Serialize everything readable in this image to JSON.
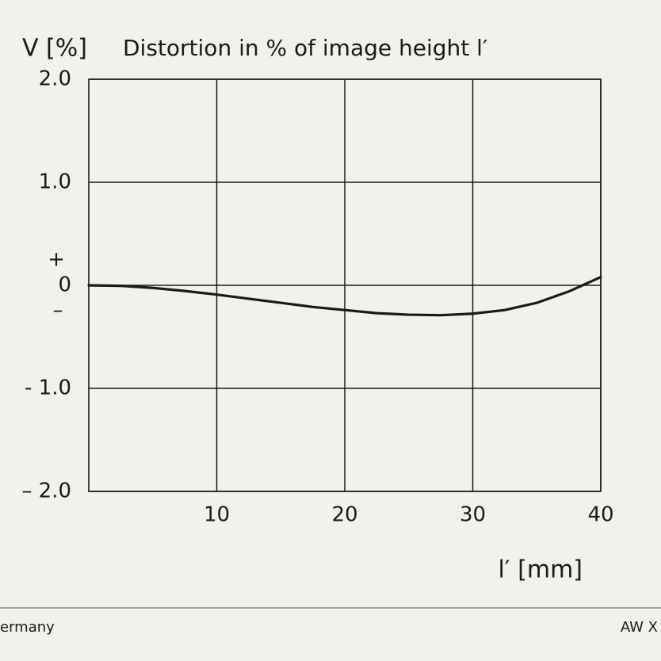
{
  "chart_data": {
    "type": "line",
    "y_label": "V [%]",
    "title": "Distortion in % of image height l′",
    "x_label": "l′ [mm]",
    "annotations": [
      "+",
      "–"
    ],
    "x": [
      0,
      2.5,
      5,
      7.5,
      10,
      12.5,
      15,
      17.5,
      20,
      22.5,
      25,
      27.5,
      30,
      32.5,
      35,
      37.5,
      40
    ],
    "values": [
      0,
      -0.005,
      -0.025,
      -0.055,
      -0.09,
      -0.13,
      -0.17,
      -0.21,
      -0.24,
      -0.27,
      -0.285,
      -0.29,
      -0.275,
      -0.24,
      -0.17,
      -0.06,
      0.08
    ],
    "color": "#1a1a1a",
    "xlim": [
      0,
      40
    ],
    "xticks": [
      10,
      20,
      30,
      40
    ],
    "ylim": [
      -2,
      2
    ],
    "yticks": [
      {
        "value": 2,
        "label": "2.0"
      },
      {
        "value": 1,
        "label": "1.0"
      },
      0,
      {
        "value": -1,
        "label": "- 1.0"
      },
      {
        "value": -2,
        "label": "– 2.0"
      }
    ],
    "grid": true
  },
  "footer": {
    "left": "ermany",
    "right": "AW X"
  }
}
